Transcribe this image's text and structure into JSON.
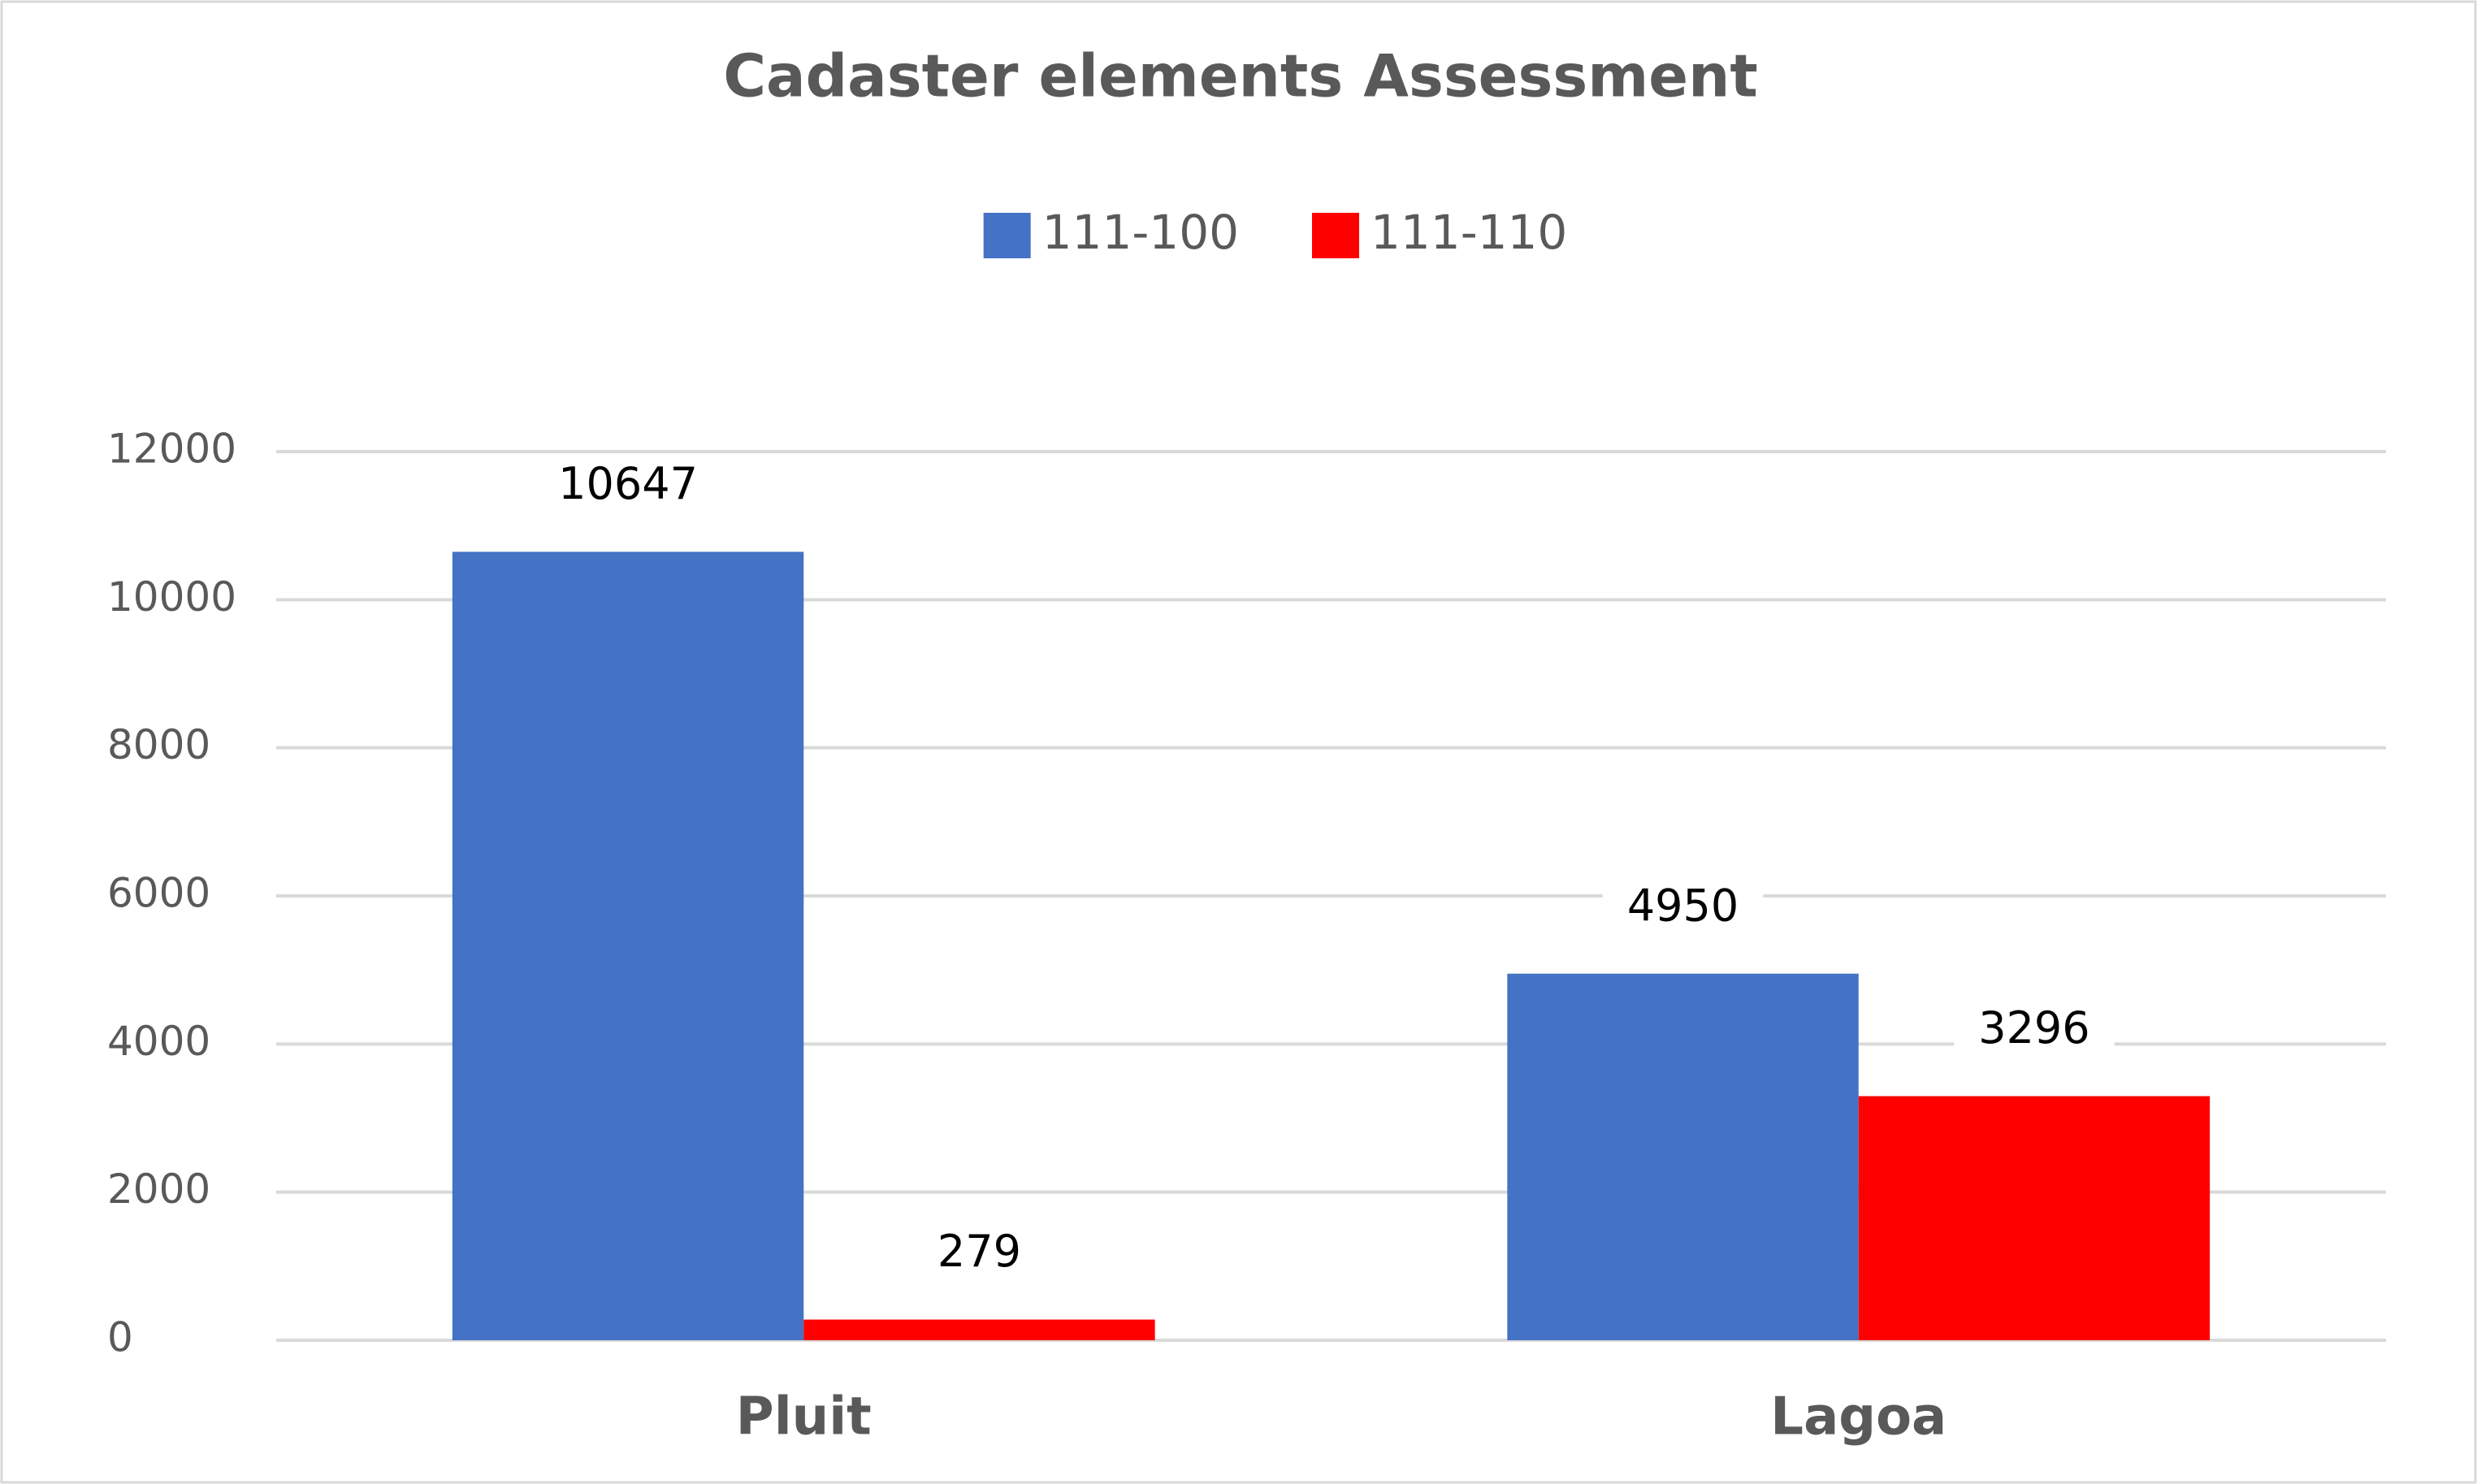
{
  "chart_data": {
    "type": "bar",
    "title": "Cadaster elements Assessment",
    "categories": [
      "Pluit",
      "Lagoa"
    ],
    "series": [
      {
        "name": "111-100",
        "color": "#4472c4",
        "values": [
          10647,
          4950
        ]
      },
      {
        "name": "111-110",
        "color": "#ff0000",
        "values": [
          279,
          3296
        ]
      }
    ],
    "ylim": [
      0,
      12000
    ],
    "yticks": [
      0,
      2000,
      4000,
      6000,
      8000,
      10000,
      12000
    ],
    "grid": true,
    "legend": "top"
  }
}
